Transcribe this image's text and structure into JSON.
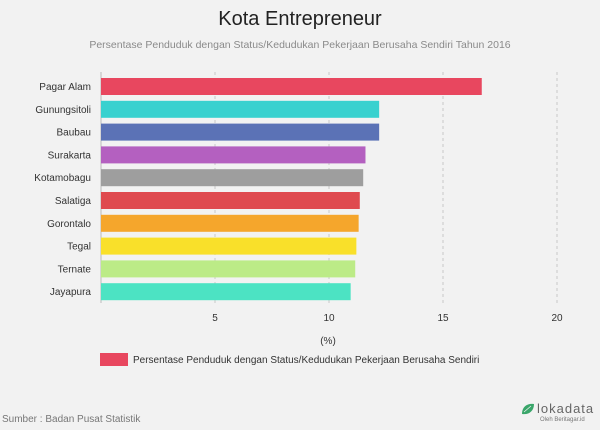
{
  "title": "Kota Entrepreneur",
  "subtitle": "Persentase Penduduk dengan Status/Kedudukan Pekerjaan Berusaha Sendiri Tahun 2016",
  "source": "Sumber : Badan Pusat Statistik",
  "logo": {
    "name": "lokadata",
    "tagline": "Oleh Beritagar.id",
    "icon": "leaf-icon"
  },
  "colors": {
    "background": "#f2f2f2",
    "gridline": "#c8c8c8",
    "legend": "#e8475f"
  },
  "chart_data": {
    "type": "bar",
    "orientation": "horizontal",
    "categories": [
      "Pagar Alam",
      "Gunungsitoli",
      "Baubau",
      "Surakarta",
      "Kotamobagu",
      "Salatiga",
      "Gorontalo",
      "Tegal",
      "Ternate",
      "Jayapura"
    ],
    "series": [
      {
        "name": "Persentase Penduduk dengan Status/Kedudukan Pekerjaan Berusaha Sendiri",
        "values": [
          16.7,
          12.2,
          12.2,
          11.6,
          11.5,
          11.35,
          11.3,
          11.2,
          11.15,
          10.95
        ],
        "colors": [
          "#e8475f",
          "#38d1cf",
          "#5b72b6",
          "#b460c0",
          "#9e9e9e",
          "#df4a4f",
          "#f5a62c",
          "#f9e02a",
          "#bceb87",
          "#4ce3c3"
        ]
      }
    ],
    "xlabel": "(%)",
    "xlim": [
      0,
      20
    ],
    "xticks": [
      5,
      10,
      15,
      20
    ],
    "grid": true,
    "legend_position": "bottom-left"
  }
}
